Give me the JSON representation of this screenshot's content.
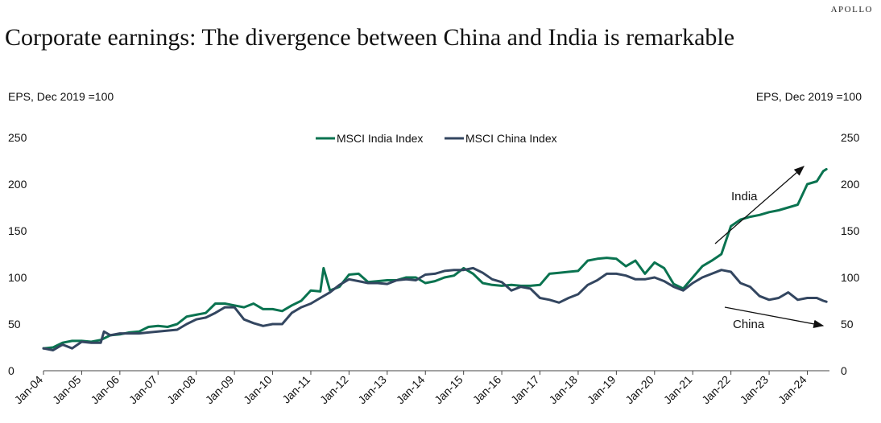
{
  "brand": "APOLLO",
  "colors": {
    "india": "#0a7350",
    "china": "#334660"
  },
  "chart_data": {
    "type": "line",
    "title": "Corporate earnings: The divergence between China and India is remarkable",
    "ylabel_left": "EPS, Dec 2019 =100",
    "ylabel_right": "EPS, Dec 2019 =100",
    "ylim": [
      0,
      250
    ],
    "yticks": [
      "0",
      "50",
      "100",
      "150",
      "200",
      "250"
    ],
    "x_tick_labels": [
      "Jan-04",
      "Jan-05",
      "Jan-06",
      "Jan-07",
      "Jan-08",
      "Jan-09",
      "Jan-10",
      "Jan-11",
      "Jan-12",
      "Jan-13",
      "Jan-14",
      "Jan-15",
      "Jan-16",
      "Jan-17",
      "Jan-18",
      "Jan-19",
      "Jan-20",
      "Jan-21",
      "Jan-22",
      "Jan-23",
      "Jan-24"
    ],
    "legend_position": "top-center",
    "annotations": [
      {
        "text": "India",
        "trend": "up"
      },
      {
        "text": "China",
        "trend": "down"
      }
    ],
    "series": [
      {
        "name": "MSCI India Index",
        "color_key": "india",
        "points": [
          [
            "2004-01",
            24
          ],
          [
            "2004-04",
            25
          ],
          [
            "2004-07",
            30
          ],
          [
            "2004-10",
            32
          ],
          [
            "2005-01",
            32
          ],
          [
            "2005-04",
            31
          ],
          [
            "2005-07",
            33
          ],
          [
            "2005-10",
            38
          ],
          [
            "2006-01",
            39
          ],
          [
            "2006-04",
            41
          ],
          [
            "2006-07",
            42
          ],
          [
            "2006-10",
            47
          ],
          [
            "2007-01",
            48
          ],
          [
            "2007-04",
            47
          ],
          [
            "2007-07",
            50
          ],
          [
            "2007-10",
            58
          ],
          [
            "2008-01",
            60
          ],
          [
            "2008-04",
            62
          ],
          [
            "2008-07",
            72
          ],
          [
            "2008-10",
            72
          ],
          [
            "2009-01",
            70
          ],
          [
            "2009-04",
            68
          ],
          [
            "2009-07",
            72
          ],
          [
            "2009-10",
            66
          ],
          [
            "2010-01",
            66
          ],
          [
            "2010-04",
            64
          ],
          [
            "2010-07",
            70
          ],
          [
            "2010-10",
            75
          ],
          [
            "2011-01",
            86
          ],
          [
            "2011-04",
            85
          ],
          [
            "2011-05",
            110
          ],
          [
            "2011-07",
            86
          ],
          [
            "2011-10",
            90
          ],
          [
            "2012-01",
            103
          ],
          [
            "2012-04",
            104
          ],
          [
            "2012-07",
            95
          ],
          [
            "2012-10",
            96
          ],
          [
            "2013-01",
            97
          ],
          [
            "2013-04",
            97
          ],
          [
            "2013-07",
            100
          ],
          [
            "2013-10",
            100
          ],
          [
            "2014-01",
            94
          ],
          [
            "2014-04",
            96
          ],
          [
            "2014-07",
            100
          ],
          [
            "2014-10",
            102
          ],
          [
            "2015-01",
            110
          ],
          [
            "2015-04",
            104
          ],
          [
            "2015-07",
            94
          ],
          [
            "2015-10",
            92
          ],
          [
            "2016-01",
            91
          ],
          [
            "2016-04",
            92
          ],
          [
            "2016-07",
            91
          ],
          [
            "2016-10",
            91
          ],
          [
            "2017-01",
            92
          ],
          [
            "2017-04",
            104
          ],
          [
            "2017-07",
            105
          ],
          [
            "2017-10",
            106
          ],
          [
            "2018-01",
            107
          ],
          [
            "2018-04",
            118
          ],
          [
            "2018-07",
            120
          ],
          [
            "2018-10",
            121
          ],
          [
            "2019-01",
            120
          ],
          [
            "2019-04",
            112
          ],
          [
            "2019-07",
            118
          ],
          [
            "2019-10",
            104
          ],
          [
            "2020-01",
            116
          ],
          [
            "2020-04",
            110
          ],
          [
            "2020-07",
            93
          ],
          [
            "2020-10",
            88
          ],
          [
            "2021-01",
            100
          ],
          [
            "2021-04",
            112
          ],
          [
            "2021-07",
            118
          ],
          [
            "2021-10",
            125
          ],
          [
            "2022-01",
            155
          ],
          [
            "2022-04",
            162
          ],
          [
            "2022-07",
            165
          ],
          [
            "2022-10",
            167
          ],
          [
            "2023-01",
            170
          ],
          [
            "2023-04",
            172
          ],
          [
            "2023-07",
            175
          ],
          [
            "2023-10",
            178
          ],
          [
            "2024-01",
            200
          ],
          [
            "2024-04",
            203
          ],
          [
            "2024-06",
            214
          ],
          [
            "2024-07",
            216
          ]
        ]
      },
      {
        "name": "MSCI China Index",
        "color_key": "china",
        "points": [
          [
            "2004-01",
            24
          ],
          [
            "2004-04",
            22
          ],
          [
            "2004-07",
            28
          ],
          [
            "2004-10",
            24
          ],
          [
            "2005-01",
            31
          ],
          [
            "2005-04",
            30
          ],
          [
            "2005-07",
            30
          ],
          [
            "2005-08",
            42
          ],
          [
            "2005-10",
            38
          ],
          [
            "2006-01",
            40
          ],
          [
            "2006-04",
            40
          ],
          [
            "2006-07",
            40
          ],
          [
            "2006-10",
            41
          ],
          [
            "2007-01",
            42
          ],
          [
            "2007-04",
            43
          ],
          [
            "2007-07",
            44
          ],
          [
            "2007-10",
            50
          ],
          [
            "2008-01",
            55
          ],
          [
            "2008-04",
            57
          ],
          [
            "2008-07",
            62
          ],
          [
            "2008-10",
            68
          ],
          [
            "2009-01",
            68
          ],
          [
            "2009-04",
            55
          ],
          [
            "2009-07",
            51
          ],
          [
            "2009-10",
            48
          ],
          [
            "2010-01",
            50
          ],
          [
            "2010-04",
            50
          ],
          [
            "2010-07",
            62
          ],
          [
            "2010-10",
            68
          ],
          [
            "2011-01",
            72
          ],
          [
            "2011-04",
            78
          ],
          [
            "2011-07",
            84
          ],
          [
            "2011-10",
            92
          ],
          [
            "2012-01",
            98
          ],
          [
            "2012-04",
            96
          ],
          [
            "2012-07",
            94
          ],
          [
            "2012-10",
            94
          ],
          [
            "2013-01",
            93
          ],
          [
            "2013-04",
            97
          ],
          [
            "2013-07",
            98
          ],
          [
            "2013-10",
            97
          ],
          [
            "2014-01",
            103
          ],
          [
            "2014-04",
            104
          ],
          [
            "2014-07",
            107
          ],
          [
            "2014-10",
            108
          ],
          [
            "2015-01",
            108
          ],
          [
            "2015-04",
            110
          ],
          [
            "2015-07",
            105
          ],
          [
            "2015-10",
            98
          ],
          [
            "2016-01",
            95
          ],
          [
            "2016-04",
            86
          ],
          [
            "2016-07",
            90
          ],
          [
            "2016-10",
            88
          ],
          [
            "2017-01",
            78
          ],
          [
            "2017-04",
            76
          ],
          [
            "2017-07",
            73
          ],
          [
            "2017-10",
            78
          ],
          [
            "2018-01",
            82
          ],
          [
            "2018-04",
            92
          ],
          [
            "2018-07",
            97
          ],
          [
            "2018-10",
            104
          ],
          [
            "2019-01",
            104
          ],
          [
            "2019-04",
            102
          ],
          [
            "2019-07",
            98
          ],
          [
            "2019-10",
            98
          ],
          [
            "2020-01",
            100
          ],
          [
            "2020-04",
            96
          ],
          [
            "2020-07",
            90
          ],
          [
            "2020-10",
            86
          ],
          [
            "2021-01",
            94
          ],
          [
            "2021-04",
            100
          ],
          [
            "2021-07",
            104
          ],
          [
            "2021-10",
            108
          ],
          [
            "2022-01",
            106
          ],
          [
            "2022-04",
            94
          ],
          [
            "2022-07",
            90
          ],
          [
            "2022-10",
            80
          ],
          [
            "2023-01",
            76
          ],
          [
            "2023-04",
            78
          ],
          [
            "2023-07",
            84
          ],
          [
            "2023-10",
            76
          ],
          [
            "2024-01",
            78
          ],
          [
            "2024-04",
            78
          ],
          [
            "2024-06",
            75
          ],
          [
            "2024-07",
            74
          ]
        ]
      }
    ]
  }
}
